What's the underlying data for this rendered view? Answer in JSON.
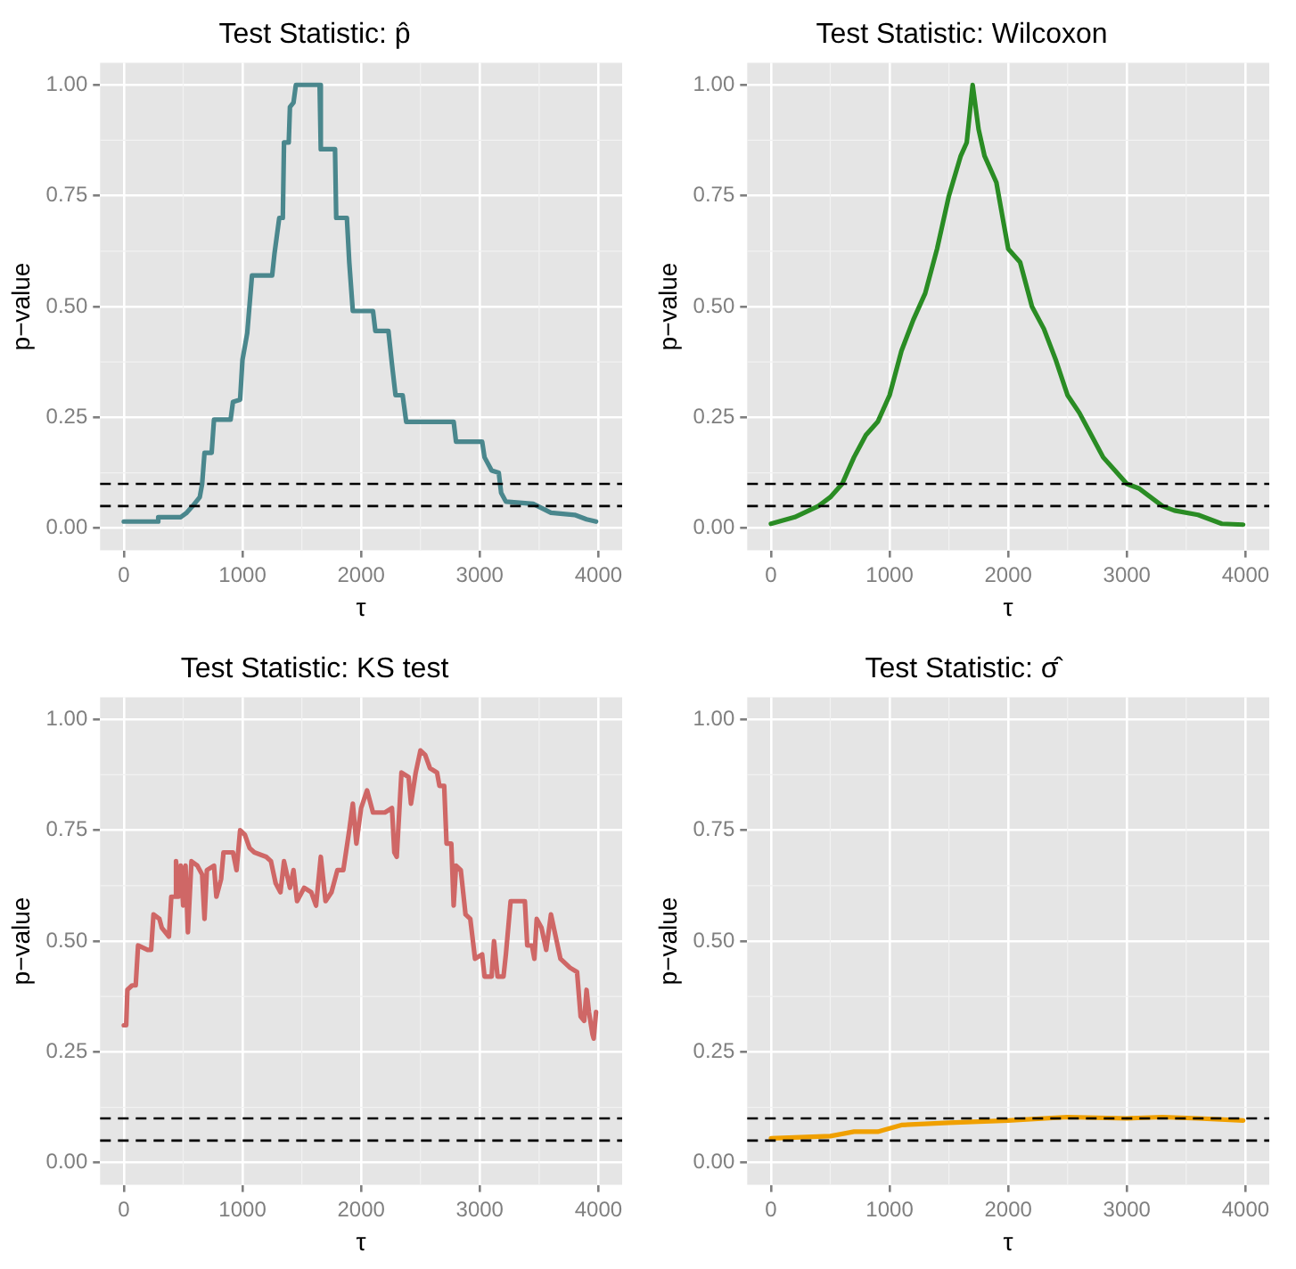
{
  "chart_data": [
    {
      "type": "line",
      "title": "Test Statistic: p̂",
      "xlabel": "τ",
      "ylabel": "p−value",
      "grid": true,
      "xlim": [
        -200,
        4200
      ],
      "ylim": [
        -0.05,
        1.05
      ],
      "xticks": [
        0,
        1000,
        2000,
        3000,
        4000
      ],
      "yticks": [
        {
          "value": 0,
          "label": "0.00"
        },
        {
          "value": 0.25,
          "label": "0.25"
        },
        {
          "value": 0.5,
          "label": "0.50"
        },
        {
          "value": 0.75,
          "label": "0.75"
        },
        {
          "value": 1,
          "label": "1.00"
        }
      ],
      "ref_lines": [
        {
          "axis": "y",
          "value": 0.05,
          "color": "#000000",
          "line_style": "dashed"
        },
        {
          "axis": "y",
          "value": 0.1,
          "color": "#000000",
          "line_style": "dashed"
        }
      ],
      "series": [
        {
          "color": "#4a878d",
          "x": [
            0,
            280,
            290,
            480,
            530,
            580,
            640,
            660,
            680,
            740,
            760,
            900,
            920,
            980,
            1000,
            1040,
            1080,
            1250,
            1270,
            1310,
            1340,
            1350,
            1390,
            1400,
            1430,
            1450,
            1650,
            1660,
            1780,
            1790,
            1880,
            1900,
            1930,
            2100,
            2120,
            2230,
            2260,
            2290,
            2350,
            2380,
            2780,
            2800,
            3020,
            3040,
            3100,
            3160,
            3180,
            3220,
            3450,
            3600,
            3800,
            3900,
            3980
          ],
          "values": [
            0.015,
            0.015,
            0.025,
            0.025,
            0.035,
            0.05,
            0.07,
            0.1,
            0.17,
            0.17,
            0.245,
            0.245,
            0.285,
            0.29,
            0.38,
            0.44,
            0.57,
            0.57,
            0.62,
            0.7,
            0.7,
            0.87,
            0.87,
            0.95,
            0.96,
            1.0,
            1.0,
            0.855,
            0.855,
            0.7,
            0.7,
            0.6,
            0.49,
            0.49,
            0.445,
            0.445,
            0.37,
            0.3,
            0.3,
            0.24,
            0.24,
            0.195,
            0.195,
            0.16,
            0.13,
            0.125,
            0.08,
            0.06,
            0.055,
            0.035,
            0.03,
            0.02,
            0.015
          ]
        }
      ]
    },
    {
      "type": "line",
      "title": "Test Statistic: Wilcoxon",
      "xlabel": "τ",
      "ylabel": "p−value",
      "grid": true,
      "xlim": [
        -200,
        4200
      ],
      "ylim": [
        -0.05,
        1.05
      ],
      "xticks": [
        0,
        1000,
        2000,
        3000,
        4000
      ],
      "yticks": [
        {
          "value": 0,
          "label": "0.00"
        },
        {
          "value": 0.25,
          "label": "0.25"
        },
        {
          "value": 0.5,
          "label": "0.50"
        },
        {
          "value": 0.75,
          "label": "0.75"
        },
        {
          "value": 1,
          "label": "1.00"
        }
      ],
      "ref_lines": [
        {
          "axis": "y",
          "value": 0.05,
          "color": "#000000",
          "line_style": "dashed"
        },
        {
          "axis": "y",
          "value": 0.1,
          "color": "#000000",
          "line_style": "dashed"
        }
      ],
      "series": [
        {
          "color": "#2a8c24",
          "x": [
            0,
            200,
            400,
            500,
            600,
            700,
            800,
            900,
            1000,
            1100,
            1200,
            1300,
            1400,
            1500,
            1600,
            1650,
            1700,
            1750,
            1800,
            1900,
            2000,
            2100,
            2200,
            2300,
            2400,
            2500,
            2600,
            2700,
            2800,
            2900,
            3000,
            3100,
            3200,
            3300,
            3400,
            3600,
            3800,
            3980
          ],
          "values": [
            0.01,
            0.025,
            0.05,
            0.07,
            0.1,
            0.16,
            0.21,
            0.24,
            0.3,
            0.4,
            0.47,
            0.53,
            0.63,
            0.75,
            0.84,
            0.87,
            1.0,
            0.9,
            0.84,
            0.78,
            0.63,
            0.6,
            0.5,
            0.45,
            0.38,
            0.3,
            0.26,
            0.21,
            0.16,
            0.13,
            0.1,
            0.09,
            0.07,
            0.05,
            0.04,
            0.03,
            0.01,
            0.008
          ]
        }
      ]
    },
    {
      "type": "line",
      "title": "Test Statistic: KS test",
      "xlabel": "τ",
      "ylabel": "p−value",
      "grid": true,
      "xlim": [
        -200,
        4200
      ],
      "ylim": [
        -0.05,
        1.05
      ],
      "xticks": [
        0,
        1000,
        2000,
        3000,
        4000
      ],
      "yticks": [
        {
          "value": 0,
          "label": "0.00"
        },
        {
          "value": 0.25,
          "label": "0.25"
        },
        {
          "value": 0.5,
          "label": "0.50"
        },
        {
          "value": 0.75,
          "label": "0.75"
        },
        {
          "value": 1,
          "label": "1.00"
        }
      ],
      "ref_lines": [
        {
          "axis": "y",
          "value": 0.05,
          "color": "#000000",
          "line_style": "dashed"
        },
        {
          "axis": "y",
          "value": 0.1,
          "color": "#000000",
          "line_style": "dashed"
        }
      ],
      "series": [
        {
          "color": "#cf6766",
          "x": [
            0,
            20,
            30,
            70,
            100,
            120,
            200,
            230,
            250,
            300,
            320,
            380,
            400,
            430,
            440,
            460,
            480,
            500,
            520,
            540,
            570,
            620,
            660,
            680,
            700,
            760,
            780,
            820,
            840,
            920,
            950,
            980,
            1020,
            1060,
            1100,
            1200,
            1240,
            1280,
            1320,
            1350,
            1400,
            1430,
            1460,
            1520,
            1580,
            1620,
            1660,
            1700,
            1750,
            1800,
            1850,
            1900,
            1930,
            1960,
            2000,
            2050,
            2100,
            2200,
            2260,
            2280,
            2300,
            2340,
            2400,
            2420,
            2460,
            2500,
            2540,
            2580,
            2640,
            2660,
            2700,
            2720,
            2760,
            2780,
            2800,
            2840,
            2880,
            2920,
            2960,
            3020,
            3040,
            3100,
            3120,
            3150,
            3200,
            3220,
            3260,
            3380,
            3400,
            3440,
            3460,
            3480,
            3520,
            3560,
            3600,
            3640,
            3680,
            3760,
            3820,
            3850,
            3880,
            3900,
            3920,
            3950,
            3960,
            3980
          ],
          "values": [
            0.31,
            0.31,
            0.39,
            0.4,
            0.4,
            0.49,
            0.48,
            0.48,
            0.56,
            0.55,
            0.53,
            0.51,
            0.6,
            0.6,
            0.68,
            0.6,
            0.67,
            0.58,
            0.67,
            0.52,
            0.68,
            0.67,
            0.65,
            0.55,
            0.66,
            0.67,
            0.6,
            0.64,
            0.7,
            0.7,
            0.66,
            0.75,
            0.74,
            0.71,
            0.7,
            0.69,
            0.68,
            0.63,
            0.61,
            0.68,
            0.62,
            0.66,
            0.59,
            0.62,
            0.61,
            0.58,
            0.69,
            0.59,
            0.61,
            0.66,
            0.66,
            0.75,
            0.81,
            0.72,
            0.8,
            0.84,
            0.79,
            0.79,
            0.8,
            0.7,
            0.69,
            0.88,
            0.87,
            0.81,
            0.88,
            0.93,
            0.92,
            0.89,
            0.88,
            0.85,
            0.85,
            0.72,
            0.72,
            0.58,
            0.67,
            0.66,
            0.56,
            0.55,
            0.46,
            0.47,
            0.42,
            0.42,
            0.5,
            0.42,
            0.42,
            0.47,
            0.59,
            0.59,
            0.49,
            0.49,
            0.46,
            0.55,
            0.53,
            0.48,
            0.56,
            0.51,
            0.46,
            0.44,
            0.43,
            0.33,
            0.32,
            0.39,
            0.34,
            0.29,
            0.28,
            0.34
          ]
        }
      ]
    },
    {
      "type": "line",
      "title": "Test Statistic: σ̂",
      "xlabel": "τ",
      "ylabel": "p−value",
      "grid": true,
      "xlim": [
        -200,
        4200
      ],
      "ylim": [
        -0.05,
        1.05
      ],
      "xticks": [
        0,
        1000,
        2000,
        3000,
        4000
      ],
      "yticks": [
        {
          "value": 0,
          "label": "0.00"
        },
        {
          "value": 0.25,
          "label": "0.25"
        },
        {
          "value": 0.5,
          "label": "0.50"
        },
        {
          "value": 0.75,
          "label": "0.75"
        },
        {
          "value": 1,
          "label": "1.00"
        }
      ],
      "ref_lines": [
        {
          "axis": "y",
          "value": 0.05,
          "color": "#000000",
          "line_style": "dashed"
        },
        {
          "axis": "y",
          "value": 0.1,
          "color": "#000000",
          "line_style": "dashed"
        }
      ],
      "series": [
        {
          "color": "#f0a000",
          "x": [
            0,
            500,
            700,
            900,
            1100,
            1500,
            2000,
            2500,
            3000,
            3300,
            3600,
            3980
          ],
          "values": [
            0.055,
            0.06,
            0.07,
            0.07,
            0.085,
            0.09,
            0.095,
            0.103,
            0.1,
            0.103,
            0.1,
            0.095
          ]
        }
      ]
    }
  ]
}
